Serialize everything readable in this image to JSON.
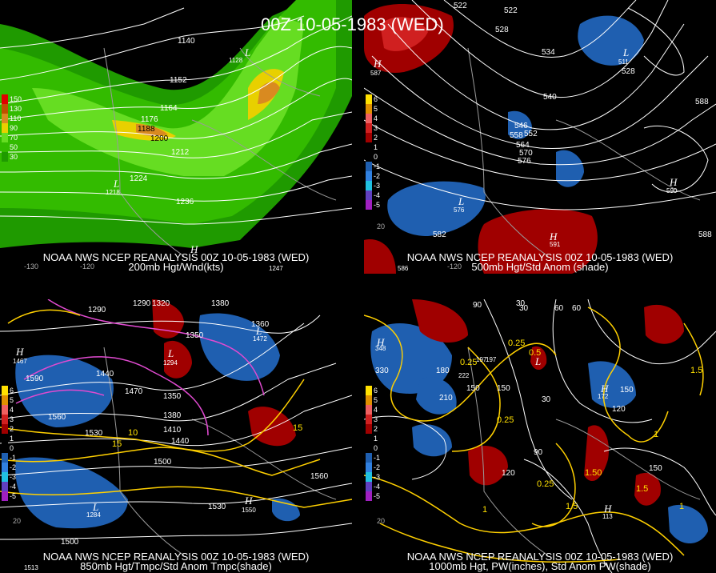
{
  "title": "00Z 10-05-1983 (WED)",
  "panels": {
    "p200": {
      "caption1": "NOAA NWS NCEP REANALYSIS 00Z 10-05-1983 (WED)",
      "caption2": "200mb Hgt/Wnd(kts)",
      "legend": [
        "150",
        "130",
        "110",
        "90",
        "70",
        "50",
        "30"
      ],
      "contour_labels": [
        "1140",
        "1152",
        "1164",
        "1176",
        "1188",
        "1200",
        "1212",
        "1224",
        "1236",
        "1128",
        "1218",
        "1247"
      ],
      "lon_labels": [
        "-130",
        "-120"
      ],
      "colors": {
        "wind_light": "#66dd22",
        "wind_mid": "#33bb00",
        "wind_dark": "#1f9a00",
        "wind_yellow": "#e8d000",
        "wind_orange": "#d98a20"
      }
    },
    "p500": {
      "caption1": "NOAA NWS NCEP REANALYSIS 00Z 10-05-1983 (WED)",
      "caption2": "500mb Hgt/Std Anom (shade)",
      "legend": [
        "6",
        "5",
        "4",
        "3",
        "2",
        "1",
        "0",
        "-1",
        "-2",
        "-3",
        "-4",
        "-5"
      ],
      "contour_labels": [
        "522",
        "522",
        "528",
        "534",
        "540",
        "546",
        "552",
        "558",
        "564",
        "570",
        "576",
        "582",
        "588",
        "588",
        "528",
        "511",
        "587",
        "591",
        "576",
        "590",
        "586"
      ],
      "lon_labels": [
        "20",
        "-120"
      ]
    },
    "p850": {
      "caption1": "NOAA NWS NCEP REANALYSIS 00Z 10-05-1983 (WED)",
      "caption2": "850mb Hgt/Tmpc/Std Anom Tmpc(shade)",
      "legend": [
        "6",
        "5",
        "4",
        "3",
        "2",
        "1",
        "0",
        "-1",
        "-2",
        "-3",
        "-4",
        "-5"
      ],
      "contour_labels": [
        "1320",
        "1290",
        "1380",
        "1350",
        "1440",
        "1590",
        "1560",
        "1530",
        "1470",
        "1350",
        "1380",
        "1410",
        "1440",
        "1500",
        "1560",
        "1530",
        "1500",
        "1290",
        "1360",
        "1467",
        "1550",
        "1513",
        "1294",
        "1472",
        "1284"
      ],
      "temp_labels": [
        "15",
        "10",
        "15"
      ],
      "lon_labels": [
        "20"
      ]
    },
    "p1000": {
      "caption1": "NOAA NWS NCEP REANALYSIS 00Z 10-05-1983 (WED)",
      "caption2": "1000mb Hgt, PW(inches), Std Anom PW(shade)",
      "legend": [
        "6",
        "5",
        "4",
        "3",
        "2",
        "1",
        "0",
        "-1",
        "-2",
        "-3",
        "-4",
        "-5"
      ],
      "contour_labels": [
        "30",
        "60",
        "90",
        "330",
        "180",
        "210",
        "150",
        "30",
        "150",
        "120",
        "150",
        "90",
        "120",
        "60",
        "30",
        "150",
        "348",
        "172",
        "113",
        "222",
        "197",
        "197"
      ],
      "pw_labels": [
        "0.25",
        "0.5",
        "0.25",
        "0.25",
        "1",
        "1.5",
        "1.5",
        "1",
        "0.25",
        "1",
        "1.5",
        "1.50"
      ],
      "lon_labels": [
        "20"
      ]
    }
  }
}
